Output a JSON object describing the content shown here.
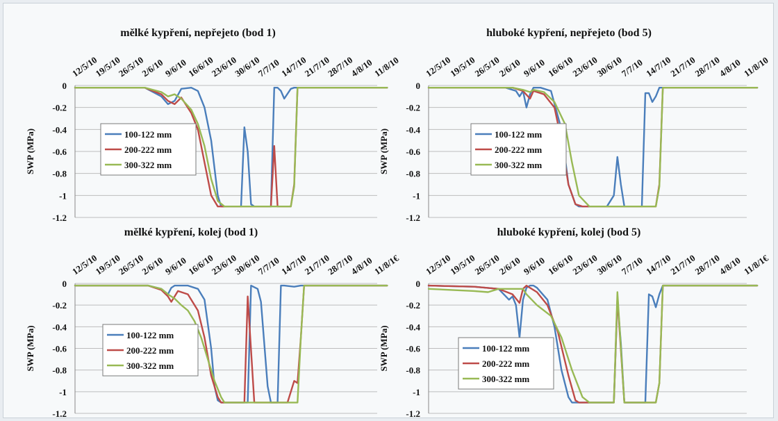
{
  "chart_data": [
    {
      "type": "line",
      "title": "mělké kypření, nepřejeto (bod 1)",
      "ylabel": "SWP (MPa)",
      "ylim": [
        -1.2,
        0
      ],
      "yticks": [
        "0",
        "-0.2",
        "-0.4",
        "-0.6",
        "-0.8",
        "-1",
        "-1.2"
      ],
      "x_tick_labels": [
        "12/5/10",
        "19/5/10",
        "26/5/10",
        "2/6/10",
        "9/6/10",
        "16/6/10",
        "23/6/10",
        "30/6/10",
        "7/7/10",
        "14/7/10",
        "21/7/10",
        "28/7/10",
        "4/8/10",
        "11/8/10"
      ],
      "grid": true,
      "legend_position": "left",
      "series": [
        {
          "name": "100-122 mm",
          "color": "#4a7ebb",
          "x": [
            "2010-05-12",
            "2010-06-02",
            "2010-06-07",
            "2010-06-09",
            "2010-06-11",
            "2010-06-13",
            "2010-06-16",
            "2010-06-18",
            "2010-06-20",
            "2010-06-22",
            "2010-06-24",
            "2010-06-25",
            "2010-06-30",
            "2010-07-01",
            "2010-07-02",
            "2010-07-03",
            "2010-07-04",
            "2010-07-05",
            "2010-07-10",
            "2010-07-11",
            "2010-07-12",
            "2010-07-13",
            "2010-07-14",
            "2010-07-16",
            "2010-07-17",
            "2010-07-18",
            "2010-07-20",
            "2010-08-14"
          ],
          "y": [
            -0.02,
            -0.02,
            -0.1,
            -0.17,
            -0.14,
            -0.03,
            -0.02,
            -0.05,
            -0.2,
            -0.5,
            -1.0,
            -1.1,
            -1.1,
            -1.1,
            -0.38,
            -0.6,
            -1.08,
            -1.1,
            -1.1,
            -0.02,
            -0.02,
            -0.05,
            -0.12,
            -0.03,
            -0.02,
            -0.02,
            -0.02,
            -0.02
          ]
        },
        {
          "name": "200-222 mm",
          "color": "#be4b48",
          "x": [
            "2010-05-12",
            "2010-06-02",
            "2010-06-07",
            "2010-06-09",
            "2010-06-11",
            "2010-06-13",
            "2010-06-16",
            "2010-06-18",
            "2010-06-20",
            "2010-06-22",
            "2010-06-24",
            "2010-06-25",
            "2010-07-09",
            "2010-07-10",
            "2010-07-11",
            "2010-07-12",
            "2010-07-13",
            "2010-07-14",
            "2010-07-15",
            "2010-07-16",
            "2010-07-17",
            "2010-07-18",
            "2010-08-14"
          ],
          "y": [
            -0.02,
            -0.02,
            -0.08,
            -0.14,
            -0.17,
            -0.11,
            -0.25,
            -0.4,
            -0.7,
            -1.0,
            -1.1,
            -1.1,
            -1.1,
            -1.1,
            -0.55,
            -1.1,
            -1.1,
            -1.1,
            -1.1,
            -1.1,
            -0.9,
            -0.02,
            -0.02
          ]
        },
        {
          "name": "300-322 mm",
          "color": "#98b954",
          "x": [
            "2010-05-12",
            "2010-06-02",
            "2010-06-07",
            "2010-06-09",
            "2010-06-11",
            "2010-06-13",
            "2010-06-16",
            "2010-06-18",
            "2010-06-20",
            "2010-06-22",
            "2010-06-24",
            "2010-06-26",
            "2010-07-16",
            "2010-07-17",
            "2010-07-18",
            "2010-07-19",
            "2010-08-14"
          ],
          "y": [
            -0.02,
            -0.02,
            -0.06,
            -0.1,
            -0.08,
            -0.12,
            -0.22,
            -0.35,
            -0.55,
            -0.85,
            -1.05,
            -1.1,
            -1.1,
            -0.92,
            -0.02,
            -0.02,
            -0.02
          ]
        }
      ]
    },
    {
      "type": "line",
      "title": "hluboké kypření, nepřejeto (bod 5)",
      "ylabel": "SWP (MPa)",
      "ylim": [
        -1.2,
        0
      ],
      "yticks": [
        "0",
        "-0.2",
        "-0.4",
        "-0.6",
        "-0.8",
        "-1",
        "-1.2"
      ],
      "x_tick_labels": [
        "12/5/10",
        "19/5/10",
        "26/5/10",
        "2/6/10",
        "9/6/10",
        "16/6/10",
        "23/6/10",
        "30/6/10",
        "7/7/10",
        "14/7/10",
        "21/7/10",
        "28/7/10",
        "4/8/10",
        "11/8/10"
      ],
      "grid": true,
      "legend_position": "left",
      "series": [
        {
          "name": "100-122 mm",
          "color": "#4a7ebb",
          "x": [
            "2010-05-12",
            "2010-06-03",
            "2010-06-06",
            "2010-06-07",
            "2010-06-08",
            "2010-06-09",
            "2010-06-10",
            "2010-06-11",
            "2010-06-13",
            "2010-06-16",
            "2010-06-19",
            "2010-06-21",
            "2010-06-23",
            "2010-06-24",
            "2010-07-02",
            "2010-07-04",
            "2010-07-05",
            "2010-07-06",
            "2010-07-07",
            "2010-07-12",
            "2010-07-13",
            "2010-07-14",
            "2010-07-15",
            "2010-07-16",
            "2010-07-17",
            "2010-08-14"
          ],
          "y": [
            -0.02,
            -0.02,
            -0.05,
            -0.1,
            -0.05,
            -0.2,
            -0.08,
            -0.02,
            -0.02,
            -0.05,
            -0.4,
            -0.9,
            -1.08,
            -1.1,
            -1.1,
            -1.0,
            -0.65,
            -0.9,
            -1.1,
            -1.1,
            -0.07,
            -0.07,
            -0.15,
            -0.1,
            -0.02,
            -0.02
          ]
        },
        {
          "name": "200-222 mm",
          "color": "#be4b48",
          "x": [
            "2010-05-12",
            "2010-06-05",
            "2010-06-08",
            "2010-06-10",
            "2010-06-11",
            "2010-06-14",
            "2010-06-17",
            "2010-06-19",
            "2010-06-21",
            "2010-06-23",
            "2010-06-25",
            "2010-07-16",
            "2010-07-17",
            "2010-07-18",
            "2010-08-14"
          ],
          "y": [
            -0.02,
            -0.02,
            -0.05,
            -0.12,
            -0.05,
            -0.08,
            -0.2,
            -0.5,
            -0.9,
            -1.08,
            -1.1,
            -1.1,
            -0.9,
            -0.02,
            -0.02
          ]
        },
        {
          "name": "300-322 mm",
          "color": "#98b954",
          "x": [
            "2010-05-12",
            "2010-06-05",
            "2010-06-08",
            "2010-06-10",
            "2010-06-11",
            "2010-06-14",
            "2010-06-17",
            "2010-06-20",
            "2010-06-22",
            "2010-06-24",
            "2010-06-27",
            "2010-07-16",
            "2010-07-17",
            "2010-07-18",
            "2010-08-14"
          ],
          "y": [
            -0.02,
            -0.02,
            -0.04,
            -0.06,
            -0.04,
            -0.06,
            -0.15,
            -0.35,
            -0.7,
            -1.0,
            -1.1,
            -1.1,
            -0.92,
            -0.02,
            -0.02
          ]
        }
      ]
    },
    {
      "type": "line",
      "title": "mělké kypření, kolej (bod 1)",
      "ylabel": "SWP (MPa)",
      "ylim": [
        -1.2,
        0
      ],
      "yticks": [
        "0",
        "-0.2",
        "-0.4",
        "-0.6",
        "-0.8",
        "-1",
        "-1.2"
      ],
      "x_tick_labels": [
        "12/5/10",
        "19/5/10",
        "26/5/10",
        "2/6/10",
        "9/6/10",
        "16/6/10",
        "23/6/10",
        "30/6/10",
        "7/7/10",
        "14/7/10",
        "21/7/10",
        "28/7/10",
        "4/8/10",
        "11/8/1€"
      ],
      "grid": true,
      "legend_position": "left",
      "series": [
        {
          "name": "100-122 mm",
          "color": "#4a7ebb",
          "x": [
            "2010-05-12",
            "2010-06-03",
            "2010-06-07",
            "2010-06-09",
            "2010-06-10",
            "2010-06-11",
            "2010-06-12",
            "2010-06-15",
            "2010-06-18",
            "2010-06-20",
            "2010-06-22",
            "2010-06-23",
            "2010-06-24",
            "2010-06-25",
            "2010-07-03",
            "2010-07-04",
            "2010-07-06",
            "2010-07-07",
            "2010-07-09",
            "2010-07-10",
            "2010-07-12",
            "2010-07-13",
            "2010-07-14",
            "2010-07-17",
            "2010-07-19",
            "2010-07-20",
            "2010-08-14"
          ],
          "y": [
            -0.02,
            -0.02,
            -0.05,
            -0.1,
            -0.04,
            -0.02,
            -0.02,
            -0.02,
            -0.05,
            -0.15,
            -0.6,
            -0.95,
            -1.08,
            -1.1,
            -1.1,
            -0.02,
            -0.05,
            -0.17,
            -0.95,
            -1.1,
            -1.1,
            -0.02,
            -0.02,
            -0.03,
            -0.02,
            -0.02,
            -0.02
          ]
        },
        {
          "name": "200-222 mm",
          "color": "#be4b48",
          "x": [
            "2010-05-12",
            "2010-06-03",
            "2010-06-07",
            "2010-06-09",
            "2010-06-10",
            "2010-06-12",
            "2010-06-15",
            "2010-06-18",
            "2010-06-20",
            "2010-06-22",
            "2010-06-24",
            "2010-06-25",
            "2010-07-02",
            "2010-07-03",
            "2010-07-05",
            "2010-07-06",
            "2010-07-15",
            "2010-07-17",
            "2010-07-18",
            "2010-07-19",
            "2010-07-20",
            "2010-08-14"
          ],
          "y": [
            -0.02,
            -0.02,
            -0.06,
            -0.12,
            -0.17,
            -0.07,
            -0.1,
            -0.25,
            -0.5,
            -0.85,
            -1.05,
            -1.1,
            -1.1,
            -0.12,
            -1.1,
            -1.1,
            -1.1,
            -0.9,
            -0.92,
            -0.5,
            -0.02,
            -0.02
          ]
        },
        {
          "name": "300-322 mm",
          "color": "#98b954",
          "x": [
            "2010-05-12",
            "2010-06-03",
            "2010-06-07",
            "2010-06-09",
            "2010-06-11",
            "2010-06-13",
            "2010-06-15",
            "2010-06-17",
            "2010-06-19",
            "2010-06-21",
            "2010-06-23",
            "2010-06-25",
            "2010-06-26",
            "2010-07-18",
            "2010-07-19",
            "2010-07-20",
            "2010-08-14"
          ],
          "y": [
            -0.02,
            -0.02,
            -0.05,
            -0.1,
            -0.14,
            -0.2,
            -0.25,
            -0.35,
            -0.5,
            -0.7,
            -0.9,
            -1.05,
            -1.1,
            -1.1,
            -0.5,
            -0.02,
            -0.02
          ]
        }
      ]
    },
    {
      "type": "line",
      "title": "hluboké kypření, kolej (bod 5)",
      "ylabel": "SWP (MPa)",
      "ylim": [
        -1.2,
        0
      ],
      "yticks": [
        "0",
        "-0.2",
        "-0.4",
        "-0.6",
        "-0.8",
        "-1",
        "-1.2"
      ],
      "x_tick_labels": [
        "12/5/10",
        "19/5/10",
        "26/5/10",
        "2/6/10",
        "9/6/10",
        "16/6/10",
        "23/6/10",
        "30/6/10",
        "7/7/10",
        "14/7/10",
        "21/7/10",
        "28/7/10",
        "4/8/10",
        "11/8/1€"
      ],
      "grid": true,
      "legend_position": "left",
      "series": [
        {
          "name": "100-122 mm",
          "color": "#4a7ebb",
          "x": [
            "2010-05-12",
            "2010-05-25",
            "2010-06-01",
            "2010-06-04",
            "2010-06-05",
            "2010-06-06",
            "2010-06-07",
            "2010-06-08",
            "2010-06-09",
            "2010-06-10",
            "2010-06-11",
            "2010-06-12",
            "2010-06-15",
            "2010-06-17",
            "2010-06-19",
            "2010-06-21",
            "2010-06-22",
            "2010-06-23",
            "2010-07-04",
            "2010-07-05",
            "2010-07-06",
            "2010-07-07",
            "2010-07-13",
            "2010-07-14",
            "2010-07-15",
            "2010-07-16",
            "2010-07-17",
            "2010-07-18",
            "2010-08-14"
          ],
          "y": [
            -0.02,
            -0.03,
            -0.05,
            -0.15,
            -0.12,
            -0.2,
            -0.5,
            -0.15,
            -0.04,
            -0.02,
            -0.02,
            -0.04,
            -0.15,
            -0.4,
            -0.8,
            -1.05,
            -1.1,
            -1.1,
            -1.1,
            -0.15,
            -0.55,
            -1.1,
            -1.1,
            -0.1,
            -0.12,
            -0.22,
            -0.1,
            -0.02,
            -0.02
          ]
        },
        {
          "name": "200-222 mm",
          "color": "#be4b48",
          "x": [
            "2010-05-12",
            "2010-05-25",
            "2010-06-01",
            "2010-06-05",
            "2010-06-07",
            "2010-06-08",
            "2010-06-09",
            "2010-06-12",
            "2010-06-15",
            "2010-06-18",
            "2010-06-21",
            "2010-06-23",
            "2010-06-24",
            "2010-07-04",
            "2010-07-05",
            "2010-07-07",
            "2010-07-16",
            "2010-07-17",
            "2010-07-18",
            "2010-08-14"
          ],
          "y": [
            -0.02,
            -0.03,
            -0.05,
            -0.1,
            -0.18,
            -0.05,
            -0.02,
            -0.08,
            -0.2,
            -0.45,
            -0.85,
            -1.08,
            -1.1,
            -1.1,
            -0.13,
            -1.1,
            -1.1,
            -0.92,
            -0.02,
            -0.02
          ]
        },
        {
          "name": "300-322 mm",
          "color": "#98b954",
          "x": [
            "2010-05-12",
            "2010-05-25",
            "2010-05-29",
            "2010-06-01",
            "2010-06-05",
            "2010-06-08",
            "2010-06-09",
            "2010-06-12",
            "2010-06-16",
            "2010-06-19",
            "2010-06-22",
            "2010-06-25",
            "2010-06-27",
            "2010-07-04",
            "2010-07-05",
            "2010-07-07",
            "2010-07-16",
            "2010-07-17",
            "2010-07-18",
            "2010-08-14"
          ],
          "y": [
            -0.05,
            -0.07,
            -0.08,
            -0.05,
            -0.05,
            -0.05,
            -0.1,
            -0.2,
            -0.3,
            -0.5,
            -0.8,
            -1.05,
            -1.1,
            -1.1,
            -0.08,
            -1.1,
            -1.1,
            -0.92,
            -0.02,
            -0.02
          ]
        }
      ]
    }
  ]
}
